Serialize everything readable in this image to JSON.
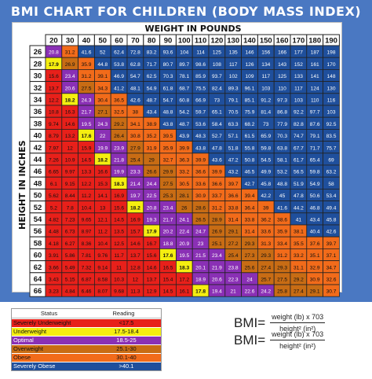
{
  "title": "BMI CHART FOR CHILDREN (BODY MASS INDEX)",
  "chart_data": {
    "type": "heatmap",
    "xlabel": "WEIGHT IN POUNDS",
    "ylabel": "HEIGHT IN INCHES",
    "x": [
      20,
      30,
      40,
      50,
      60,
      70,
      80,
      90,
      100,
      110,
      120,
      130,
      140,
      150,
      160,
      170,
      180,
      190
    ],
    "y": [
      26,
      28,
      30,
      32,
      34,
      36,
      38,
      40,
      42,
      44,
      46,
      48,
      50,
      52,
      54,
      56,
      58,
      60,
      62,
      64,
      66
    ],
    "values": [
      [
        20.8,
        31.2,
        41.6,
        52.0,
        62.4,
        72.8,
        83.2,
        93.6,
        104,
        114,
        125,
        135,
        146,
        156,
        166,
        177,
        187,
        198
      ],
      [
        17.9,
        26.9,
        35.9,
        44.8,
        53.8,
        62.8,
        71.7,
        80.7,
        89.7,
        98.6,
        108,
        117,
        126,
        134,
        143,
        152,
        161,
        170
      ],
      [
        15.6,
        23.4,
        31.2,
        39.1,
        46.9,
        54.7,
        62.5,
        70.3,
        78.1,
        85.9,
        93.7,
        102,
        109,
        117,
        125,
        133,
        141,
        148
      ],
      [
        13.7,
        20.6,
        27.5,
        34.3,
        41.2,
        48.1,
        54.9,
        61.8,
        68.7,
        75.5,
        82.4,
        89.3,
        96.1,
        103,
        110,
        117,
        124,
        130
      ],
      [
        12.2,
        18.2,
        24.3,
        30.4,
        36.5,
        42.6,
        48.7,
        54.7,
        60.8,
        66.9,
        73.0,
        79.1,
        85.1,
        91.2,
        97.3,
        103,
        110,
        116
      ],
      [
        10.8,
        16.3,
        21.7,
        27.1,
        32.5,
        38.0,
        43.4,
        48.8,
        54.2,
        59.7,
        65.1,
        70.5,
        75.9,
        81.4,
        86.8,
        92.2,
        97.7,
        103
      ],
      [
        9.74,
        14.6,
        19.5,
        24.3,
        29.2,
        34.1,
        38.9,
        43.8,
        48.7,
        53.6,
        58.4,
        63.3,
        68.2,
        73.0,
        77.9,
        82.8,
        87.6,
        92.5
      ],
      [
        8.79,
        13.2,
        17.6,
        22.0,
        26.4,
        30.8,
        35.2,
        39.5,
        43.9,
        48.3,
        52.7,
        57.1,
        61.5,
        65.9,
        70.3,
        74.7,
        79.1,
        83.5
      ],
      [
        7.97,
        12.0,
        15.9,
        19.9,
        23.9,
        27.9,
        31.9,
        35.9,
        39.9,
        43.8,
        47.8,
        51.8,
        55.8,
        59.8,
        63.8,
        67.7,
        71.7,
        75.7
      ],
      [
        7.26,
        10.9,
        14.5,
        18.2,
        21.8,
        25.4,
        29.0,
        32.7,
        36.3,
        39.9,
        43.6,
        47.2,
        50.8,
        54.5,
        58.1,
        61.7,
        65.4,
        69.0
      ],
      [
        6.65,
        9.97,
        13.3,
        16.6,
        19.9,
        23.3,
        26.6,
        29.9,
        33.2,
        36.6,
        39.9,
        43.2,
        46.5,
        49.9,
        53.2,
        56.5,
        59.8,
        63.2
      ],
      [
        6.1,
        9.15,
        12.2,
        15.3,
        18.3,
        21.4,
        24.4,
        27.5,
        30.5,
        33.6,
        36.6,
        39.7,
        42.7,
        45.8,
        48.8,
        51.9,
        54.9,
        58.0
      ],
      [
        5.62,
        8.44,
        11.2,
        14.1,
        16.9,
        19.7,
        22.5,
        25.3,
        28.1,
        30.9,
        33.7,
        36.6,
        39.4,
        42.2,
        45.0,
        47.8,
        50.6,
        53.4
      ],
      [
        5.2,
        7.8,
        10.4,
        13.0,
        15.6,
        18.2,
        20.8,
        23.4,
        26.0,
        28.6,
        31.2,
        33.8,
        36.4,
        39.0,
        41.6,
        44.2,
        46.8,
        49.4
      ],
      [
        4.82,
        7.23,
        9.65,
        12.1,
        14.5,
        16.9,
        19.3,
        21.7,
        24.1,
        26.5,
        28.9,
        31.4,
        33.8,
        36.2,
        38.6,
        41.0,
        43.4,
        45.8
      ],
      [
        4.48,
        6.73,
        8.97,
        11.2,
        13.5,
        15.7,
        17.9,
        20.2,
        22.4,
        24.7,
        26.9,
        29.1,
        31.4,
        33.6,
        35.9,
        38.1,
        40.4,
        42.6
      ],
      [
        4.18,
        6.27,
        8.36,
        10.4,
        12.5,
        14.6,
        16.7,
        18.8,
        20.9,
        23.0,
        25.1,
        27.2,
        29.3,
        31.3,
        33.4,
        35.5,
        37.6,
        39.7
      ],
      [
        3.91,
        5.86,
        7.81,
        9.76,
        11.7,
        13.7,
        15.6,
        17.6,
        19.5,
        21.5,
        23.4,
        25.4,
        27.3,
        29.3,
        31.2,
        33.2,
        35.1,
        37.1
      ],
      [
        3.66,
        5.49,
        7.32,
        9.14,
        11.0,
        12.8,
        14.6,
        16.5,
        18.3,
        20.1,
        21.9,
        23.8,
        25.6,
        27.4,
        29.3,
        31.1,
        32.9,
        34.7
      ],
      [
        3.43,
        5.15,
        6.87,
        8.58,
        10.3,
        12.0,
        13.7,
        15.4,
        17.2,
        18.9,
        20.6,
        22.3,
        24.0,
        25.7,
        27.5,
        29.2,
        30.9,
        32.6
      ],
      [
        3.23,
        4.84,
        6.46,
        8.07,
        9.68,
        11.3,
        12.9,
        14.5,
        16.1,
        17.8,
        19.4,
        21.0,
        22.6,
        24.2,
        25.8,
        27.4,
        29.1,
        30.7
      ]
    ]
  },
  "categories": [
    {
      "status": "Severely Underweight",
      "reading": "<17.5",
      "color": "#e8201a"
    },
    {
      "status": "Underweight",
      "reading": "17.5-18.4",
      "color": "#f5ee10"
    },
    {
      "status": "Optimal",
      "reading": "18.5-25",
      "color": "#8a30b5"
    },
    {
      "status": "Overweight",
      "reading": "25.1-30",
      "color": "#c86c14"
    },
    {
      "status": "Obese",
      "reading": "30.1-40",
      "color": "#f26b1a"
    },
    {
      "status": "Severely Obese",
      "reading": ">40.1",
      "color": "#1f4f9c"
    }
  ],
  "legend": {
    "status_header": "Status",
    "reading_header": "Reading"
  },
  "formula1": {
    "lhs": "BMI=",
    "num": "weight (lb) x 703",
    "den": "height² (in²)"
  },
  "formula2": {
    "lhs": "BMI=",
    "num": "weight (lb) x 703",
    "den": "height² (in²)"
  }
}
